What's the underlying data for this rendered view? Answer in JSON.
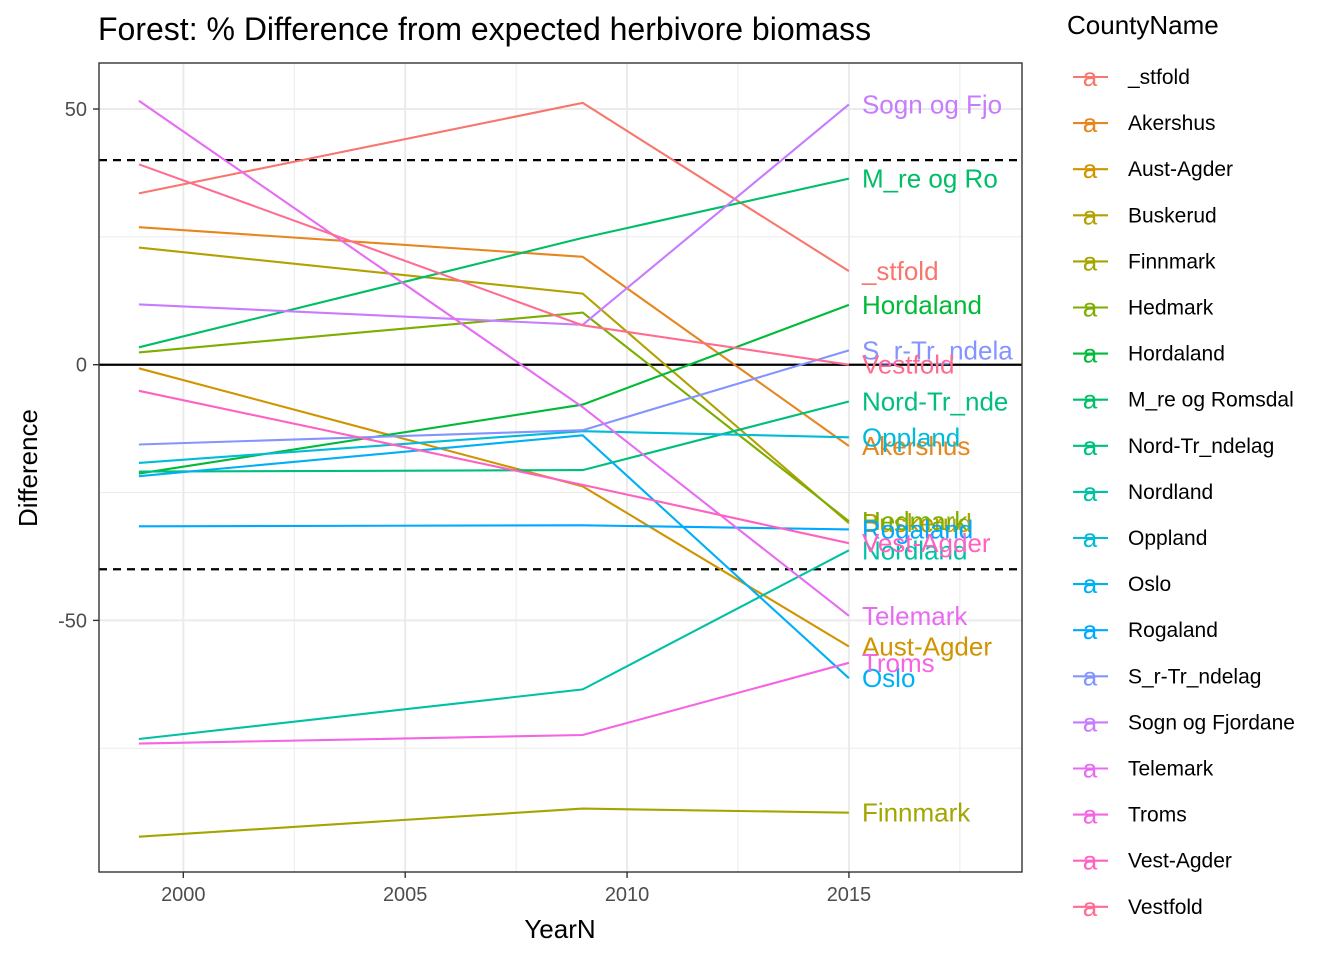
{
  "chart_data": {
    "type": "line",
    "title": "Forest: % Difference from expected herbivore biomass",
    "xlabel": "YearN",
    "ylabel": "Difference",
    "legend_title": "CountyName",
    "legend_position": "right",
    "xlim": [
      1998.1,
      2018.9
    ],
    "ylim": [
      -99.2,
      59
    ],
    "x_ticks": [
      2000,
      2005,
      2010,
      2015
    ],
    "y_ticks": [
      50,
      0,
      -50
    ],
    "x_tick_labels": [
      "2000",
      "2005",
      "2010",
      "2015"
    ],
    "y_tick_labels": [
      "50",
      "0",
      "-50"
    ],
    "grid": true,
    "reference_lines": [
      {
        "y": 0,
        "style": "solid"
      },
      {
        "y": 40,
        "style": "dashed"
      },
      {
        "y": -40,
        "style": "dashed"
      }
    ],
    "x": [
      1999,
      2009,
      2015
    ],
    "series": [
      {
        "name": "_stfold",
        "color": "#F8766D",
        "values": [
          33.5,
          51.2,
          18.3
        ],
        "end_label": "_stfold"
      },
      {
        "name": "Akershus",
        "color": "#E7851E",
        "values": [
          26.9,
          21.1,
          -15.9
        ],
        "end_label": "Akershus"
      },
      {
        "name": "Aust-Agder",
        "color": "#D09400",
        "values": [
          -0.7,
          -23.8,
          -55.1
        ],
        "end_label": "Aust-Agder"
      },
      {
        "name": "Buskerud",
        "color": "#B2A100",
        "values": [
          22.9,
          13.9,
          -31.0
        ],
        "end_label": "Buskerud"
      },
      {
        "name": "Finnmark",
        "color": "#A3A500",
        "values": [
          -92.3,
          -86.8,
          -87.6
        ],
        "end_label": "Finnmark"
      },
      {
        "name": "Hedmark",
        "color": "#7CAE00",
        "values": [
          2.4,
          10.2,
          -30.6
        ],
        "end_label": "Hedmark"
      },
      {
        "name": "Hordaland",
        "color": "#00BA38",
        "values": [
          -21.3,
          -7.8,
          11.7
        ],
        "end_label": "Hordaland"
      },
      {
        "name": "M_re og Romsdal",
        "color": "#00BE67",
        "values": [
          3.4,
          24.8,
          36.4
        ],
        "end_label": "M_re og Ro"
      },
      {
        "name": "Nord-Tr_ndelag",
        "color": "#00BF7D",
        "values": [
          -20.9,
          -20.6,
          -7.2
        ],
        "end_label": "Nord-Tr_nde"
      },
      {
        "name": "Nordland",
        "color": "#00C1A3",
        "values": [
          -73.2,
          -63.5,
          -36.3
        ],
        "end_label": "Nordland"
      },
      {
        "name": "Oppland",
        "color": "#00BCD8",
        "values": [
          -19.2,
          -13.0,
          -14.2
        ],
        "end_label": "Oppland"
      },
      {
        "name": "Oslo",
        "color": "#00B0F6",
        "values": [
          -21.8,
          -13.8,
          -61.3
        ],
        "end_label": "Oslo"
      },
      {
        "name": "Rogaland",
        "color": "#00A9FF",
        "values": [
          -31.6,
          -31.4,
          -32.2
        ],
        "end_label": "Rogaland"
      },
      {
        "name": "S_r-Tr_ndelag",
        "color": "#8494FF",
        "values": [
          -15.6,
          -12.8,
          2.8
        ],
        "end_label": "S_r-Tr_ndela"
      },
      {
        "name": "Sogn og Fjordane",
        "color": "#C77CFF",
        "values": [
          11.8,
          7.8,
          50.9
        ],
        "end_label": "Sogn og Fjo"
      },
      {
        "name": "Telemark",
        "color": "#E76BF3",
        "values": [
          51.6,
          -8.3,
          -49.1
        ],
        "end_label": "Telemark"
      },
      {
        "name": "Troms",
        "color": "#F564E3",
        "values": [
          -74.1,
          -72.4,
          -58.3
        ],
        "end_label": "Troms"
      },
      {
        "name": "Vest-Agder",
        "color": "#FF61C3",
        "values": [
          -5.1,
          -23.5,
          -34.9
        ],
        "end_label": "Vest-Agder"
      },
      {
        "name": "Vestfold",
        "color": "#FF6C91",
        "values": [
          39.2,
          7.7,
          0.0
        ],
        "end_label": "Vestfold"
      }
    ]
  }
}
